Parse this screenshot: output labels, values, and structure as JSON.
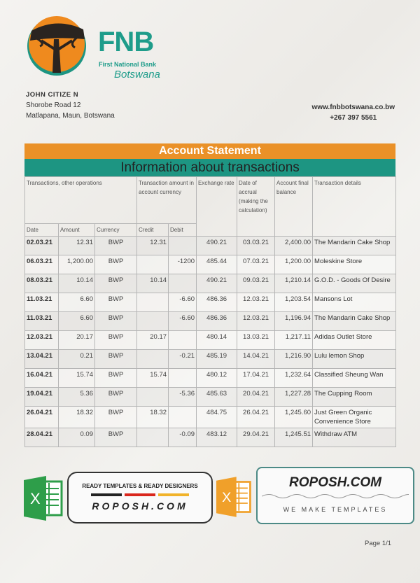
{
  "bank": {
    "logo_text": "FNB",
    "name": "First National Bank",
    "country": "Botswana",
    "website": "www.fnbbotswana.co.bw",
    "phone": "+267 397 5561"
  },
  "customer": {
    "name": "JOHN CITIZE N",
    "address_line1": "Shorobe Road 12",
    "address_line2": "Matlapana, Maun, Botswana"
  },
  "statement": {
    "title": "Account Statement",
    "subtitle": "Information about transactions"
  },
  "colors": {
    "orange": "#ea9128",
    "teal": "#1d9582"
  },
  "table": {
    "group_headers": {
      "operations": "Transactions, other operations",
      "amount": "Transaction amount in account currency",
      "exchange": "Exchange rate",
      "accrual": "Date of accrual (making the calculation)",
      "balance": "Account final balance",
      "details": "Transaction details"
    },
    "columns": {
      "date": "Date",
      "amount": "Amount",
      "currency": "Currency",
      "credit": "Credit",
      "debit": "Debit"
    },
    "rows": [
      {
        "date": "02.03.21",
        "amount": "12.31",
        "currency": "BWP",
        "credit": "12.31",
        "debit": "",
        "rate": "490.21",
        "accrual": "03.03.21",
        "balance": "2,400.00",
        "details": "The Mandarin Cake Shop"
      },
      {
        "date": "06.03.21",
        "amount": "1,200.00",
        "currency": "BWP",
        "credit": "",
        "debit": "-1200",
        "rate": "485.44",
        "accrual": "07.03.21",
        "balance": "1,200.00",
        "details": "Moleskine Store"
      },
      {
        "date": "08.03.21",
        "amount": "10.14",
        "currency": "BWP",
        "credit": "10.14",
        "debit": "",
        "rate": "490.21",
        "accrual": "09.03.21",
        "balance": "1,210.14",
        "details": "G.O.D. - Goods Of Desire"
      },
      {
        "date": "11.03.21",
        "amount": "6.60",
        "currency": "BWP",
        "credit": "",
        "debit": "-6.60",
        "rate": "486.36",
        "accrual": "12.03.21",
        "balance": "1,203.54",
        "details": "Mansons Lot"
      },
      {
        "date": "11.03.21",
        "amount": "6.60",
        "currency": "BWP",
        "credit": "",
        "debit": "-6.60",
        "rate": "486.36",
        "accrual": "12.03.21",
        "balance": "1,196.94",
        "details": "The Mandarin Cake Shop"
      },
      {
        "date": "12.03.21",
        "amount": "20.17",
        "currency": "BWP",
        "credit": "20.17",
        "debit": "",
        "rate": "480.14",
        "accrual": "13.03.21",
        "balance": "1,217.11",
        "details": "Adidas Outlet Store"
      },
      {
        "date": "13.04.21",
        "amount": "0.21",
        "currency": "BWP",
        "credit": "",
        "debit": "-0.21",
        "rate": "485.19",
        "accrual": "14.04.21",
        "balance": "1,216.90",
        "details": "Lulu lemon Shop"
      },
      {
        "date": "16.04.21",
        "amount": "15.74",
        "currency": "BWP",
        "credit": "15.74",
        "debit": "",
        "rate": "480.12",
        "accrual": "17.04.21",
        "balance": "1,232.64",
        "details": "Classified Sheung Wan"
      },
      {
        "date": "19.04.21",
        "amount": "5.36",
        "currency": "BWP",
        "credit": "",
        "debit": "-5.36",
        "rate": "485.63",
        "accrual": "20.04.21",
        "balance": "1,227.28",
        "details": "The Cupping Room"
      },
      {
        "date": "26.04.21",
        "amount": "18.32",
        "currency": "BWP",
        "credit": "18.32",
        "debit": "",
        "rate": "484.75",
        "accrual": "26.04.21",
        "balance": "1,245.60",
        "details": "Just Green Organic Convenience Store"
      },
      {
        "date": "28.04.21",
        "amount": "0.09",
        "currency": "BWP",
        "credit": "",
        "debit": "-0.09",
        "rate": "483.12",
        "accrual": "29.04.21",
        "balance": "1,245.51",
        "details": "Withdraw ATM"
      }
    ]
  },
  "watermark": {
    "tagline": "READY TEMPLATES & READY DESIGNERS",
    "brand": "ROPOSH.COM",
    "slogan": "WE MAKE TEMPLATES",
    "icon_letter": "X"
  },
  "footer": {
    "page": "Page 1/1"
  }
}
